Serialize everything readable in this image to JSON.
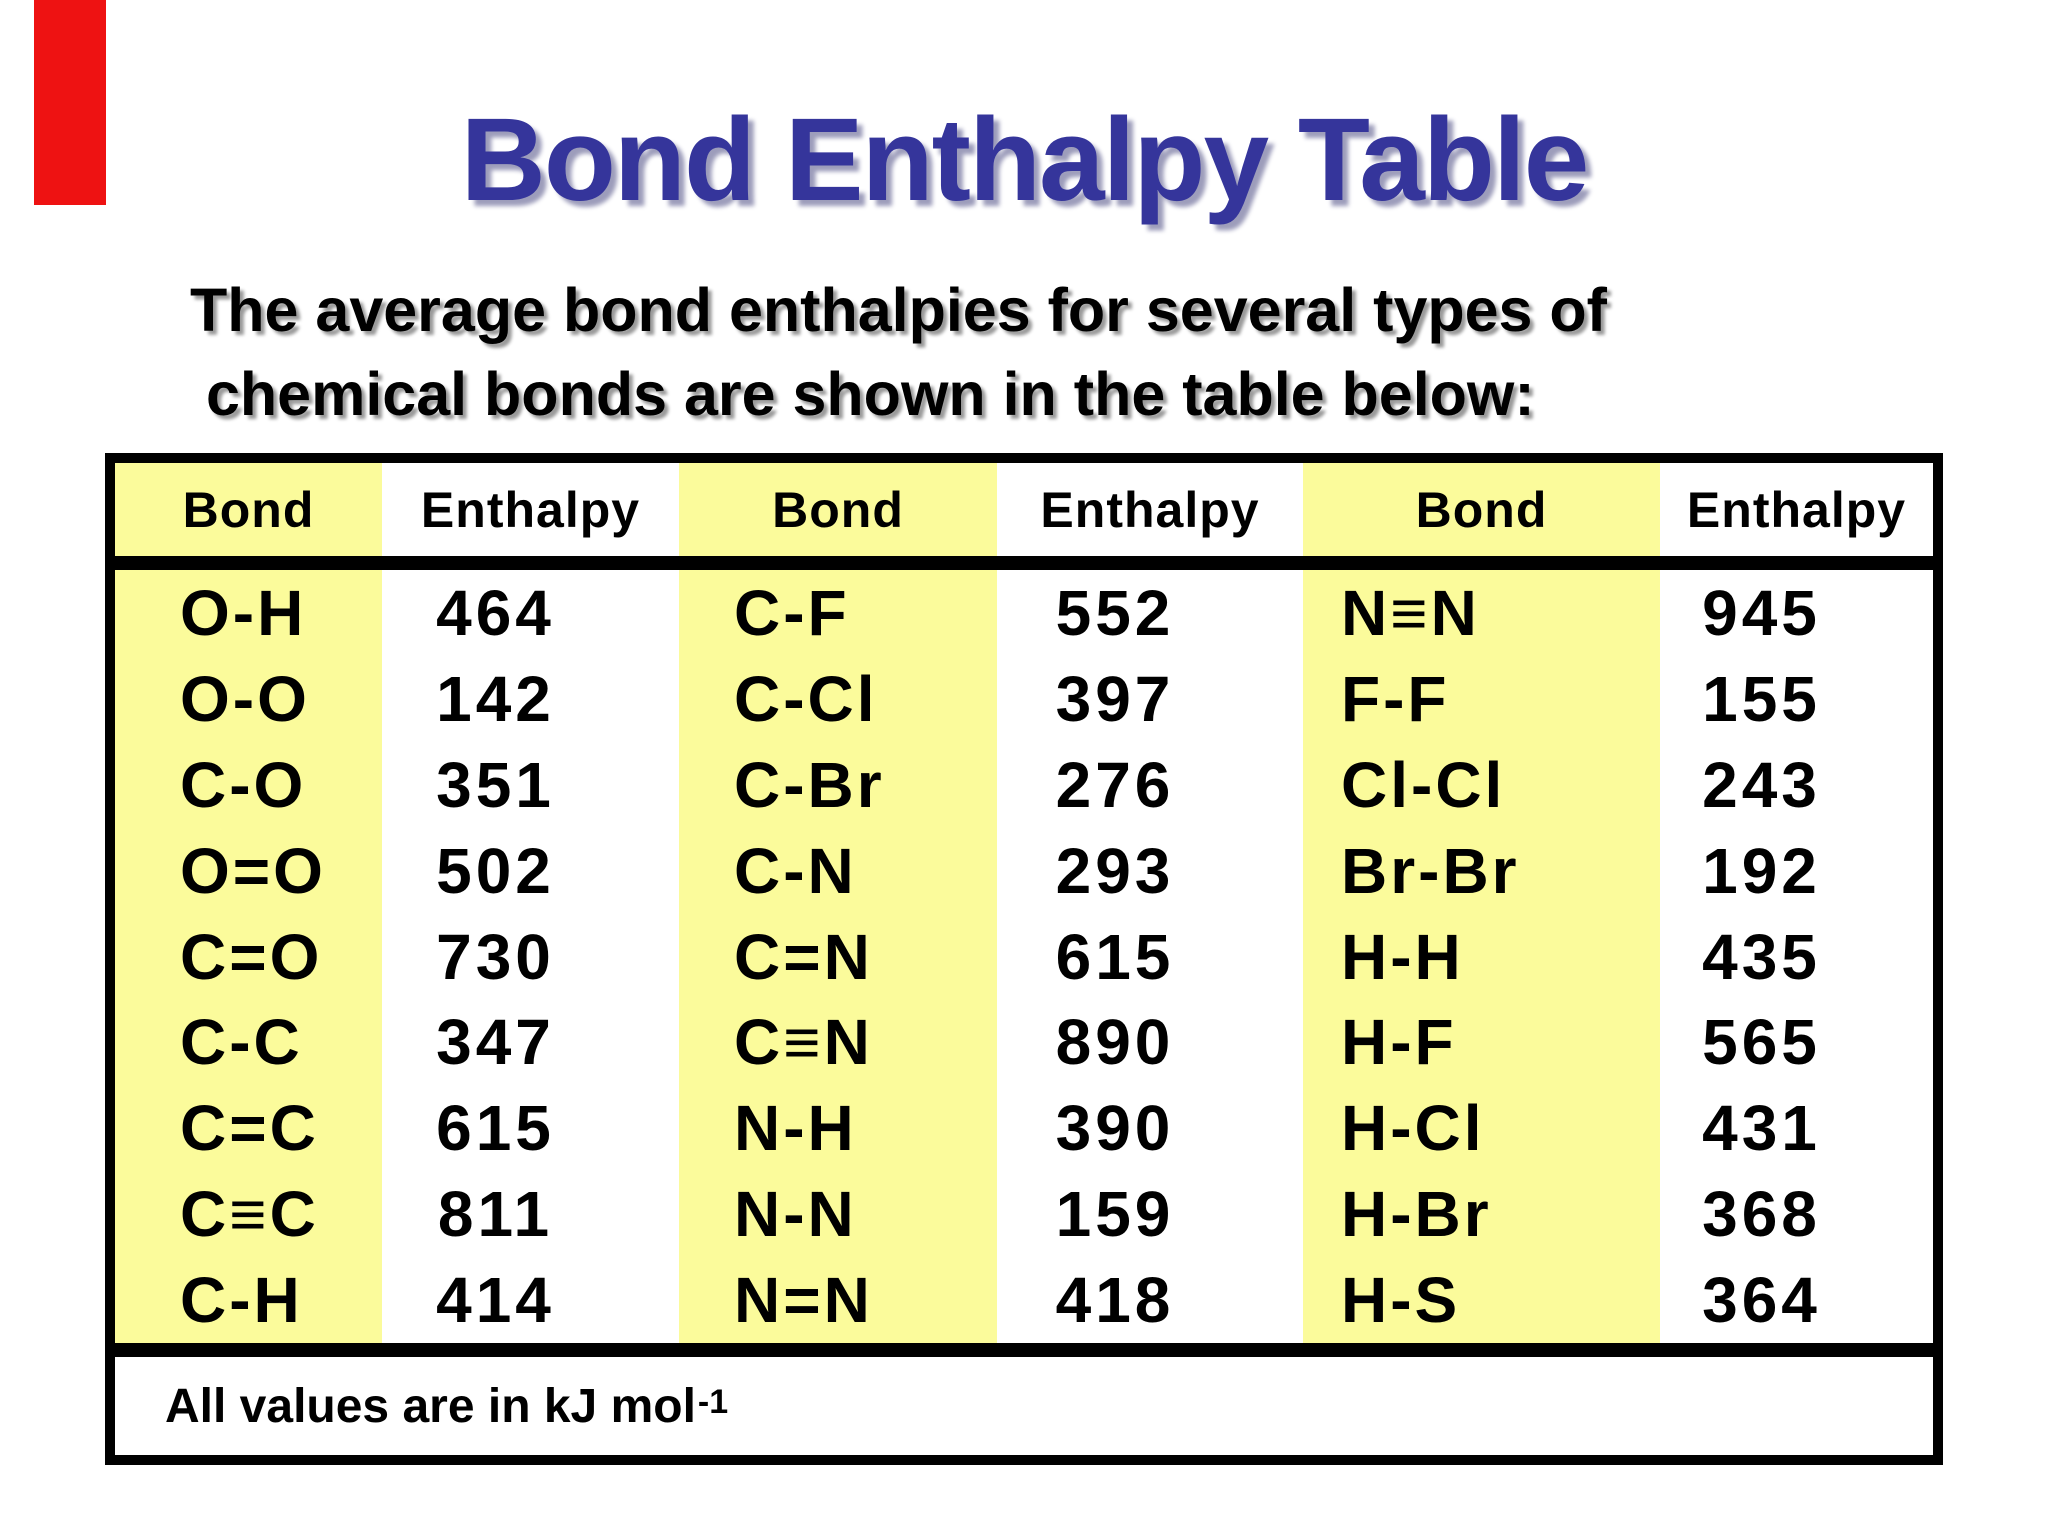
{
  "slide": {
    "title": "Bond Enthalpy Table",
    "subtitle_line1": "The average bond enthalpies for several types of",
    "subtitle_line2": "chemical bonds are shown in the table below:",
    "footnote_text": "All values are in kJ mol",
    "footnote_superscript": "-1",
    "colors": {
      "title_blue": "#35359b",
      "highlight_yellow": "#fbfb9b",
      "accent_red_bar": "#ee1212",
      "border_black": "#000000"
    }
  },
  "table": {
    "column_headers": [
      "Bond",
      "Enthalpy",
      "Bond",
      "Enthalpy",
      "Bond",
      "Enthalpy"
    ],
    "rows": [
      [
        "O-H",
        "464",
        "C-F",
        "552",
        "N≡N",
        "945"
      ],
      [
        "O-O",
        "142",
        "C-Cl",
        "397",
        "F-F",
        "155"
      ],
      [
        "C-O",
        "351",
        "C-Br",
        "276",
        "Cl-Cl",
        "243"
      ],
      [
        "O=O",
        "502",
        "C-N",
        "293",
        "Br-Br",
        "192"
      ],
      [
        "C=O",
        "730",
        "C=N",
        "615",
        "H-H",
        "435"
      ],
      [
        "C-C",
        "347",
        "C≡N",
        "890",
        "H-F",
        "565"
      ],
      [
        "C=C",
        "615",
        "N-H",
        "390",
        "H-Cl",
        "431"
      ],
      [
        "C≡C",
        "811",
        "N-N",
        "159",
        "H-Br",
        "368"
      ],
      [
        "C-H",
        "414",
        "N=N",
        "418",
        "H-S",
        "364"
      ]
    ]
  }
}
